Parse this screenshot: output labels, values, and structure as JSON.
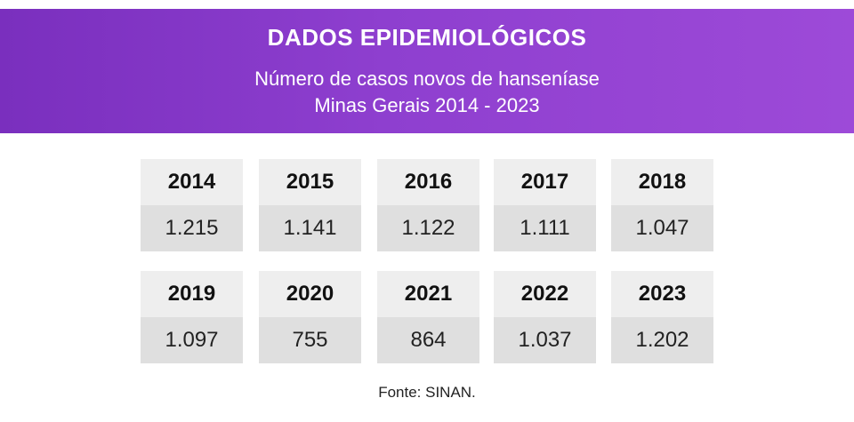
{
  "header": {
    "title": "DADOS EPIDEMIOLÓGICOS",
    "subtitle_line1": "Número de casos novos de hanseníase",
    "subtitle_line2": "Minas Gerais 2014 - 2023"
  },
  "colors": {
    "header_gradient_start": "#7a2fbe",
    "header_gradient_end": "#9d4ad8",
    "card_top": "#eeeeee",
    "card_bottom": "#dfdfdf"
  },
  "chart_data": {
    "type": "table",
    "title": "Número de casos novos de hanseníase",
    "categories": [
      "2014",
      "2015",
      "2016",
      "2017",
      "2018",
      "2019",
      "2020",
      "2021",
      "2022",
      "2023"
    ],
    "values": [
      1215,
      1141,
      1122,
      1111,
      1047,
      1097,
      755,
      864,
      1037,
      1202
    ],
    "value_labels": [
      "1.215",
      "1.141",
      "1.122",
      "1.111",
      "1.047",
      "1.097",
      "755",
      "864",
      "1.037",
      "1.202"
    ]
  },
  "footer": {
    "source": "Fonte: SINAN."
  }
}
